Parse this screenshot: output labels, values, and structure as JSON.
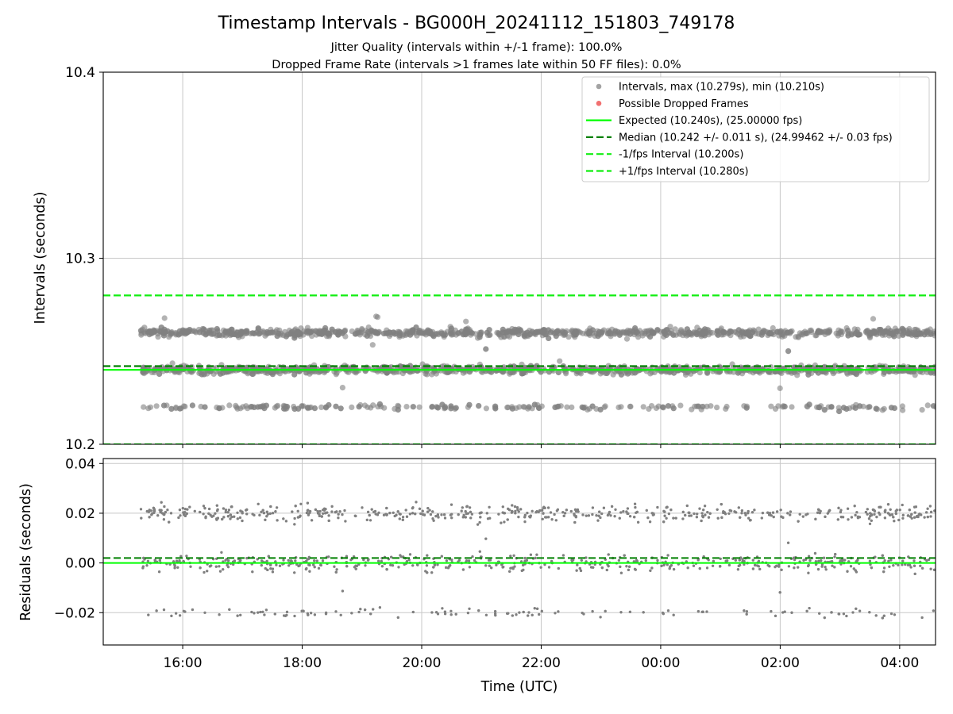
{
  "title": "Timestamp Intervals - BG000H_20241112_151803_749178",
  "subtitle_1": "Jitter Quality (intervals within +/-1 frame): 100.0%",
  "subtitle_2": "Dropped Frame Rate (intervals >1 frames late within 50 FF files): 0.0%",
  "colors": {
    "points": "#808080",
    "dropped": "#f06060",
    "expected": "#00ff00",
    "median": "#008000",
    "interval_lines": "#11ee11",
    "grid": "#c8c8c8"
  },
  "chart_data": [
    {
      "type": "scatter",
      "panel": "intervals",
      "ylabel": "Intervals (seconds)",
      "ylim": [
        10.2,
        10.4
      ],
      "yticks": [
        "10.2",
        "10.3",
        "10.4"
      ],
      "xlim_hours": [
        14.67,
        28.6
      ],
      "grid": true,
      "legend_position": "top-right",
      "legend": [
        {
          "label": "Intervals, max (10.279s), min (10.210s)",
          "style": "marker",
          "color": "#999999"
        },
        {
          "label": "Possible Dropped Frames",
          "style": "marker",
          "color": "#f06060"
        },
        {
          "label": "Expected (10.240s), (25.00000 fps)",
          "style": "solid",
          "color": "#00ff00"
        },
        {
          "label": "Median (10.242 +/- 0.011 s), (24.99462 +/- 0.03 fps)",
          "style": "dashed",
          "color": "#008000"
        },
        {
          "label": "-1/fps Interval (10.200s)",
          "style": "dashed",
          "color": "#11ee11"
        },
        {
          "label": "+1/fps Interval (10.280s)",
          "style": "dashed",
          "color": "#11ee11"
        }
      ],
      "reference_lines": {
        "expected": 10.24,
        "median": 10.242,
        "minus_1_fps": 10.2,
        "plus_1_fps": 10.28
      },
      "series": [
        {
          "name": "Intervals, max (10.279s), min (10.210s)",
          "x_range": [
            "15:18",
            "04:30"
          ],
          "clusters": [
            {
              "center": 10.26,
              "spread": 0.0018,
              "share": 0.44
            },
            {
              "center": 10.24,
              "spread": 0.0018,
              "share": 0.46
            },
            {
              "center": 10.22,
              "spread": 0.0012,
              "share": 0.1
            }
          ],
          "max": 10.279,
          "min": 10.21
        }
      ]
    },
    {
      "type": "scatter",
      "panel": "residuals",
      "ylabel": "Residuals (seconds)",
      "xlabel": "Time (UTC)",
      "ylim": [
        -0.033,
        0.042
      ],
      "yticks": [
        "−0.02",
        "0.00",
        "0.02",
        "0.04"
      ],
      "ytick_values": [
        -0.02,
        0,
        0.02,
        0.04
      ],
      "xticks": [
        "16:00",
        "18:00",
        "20:00",
        "22:00",
        "00:00",
        "02:00",
        "04:00"
      ],
      "xtick_hours": [
        16,
        18,
        20,
        22,
        24,
        26,
        28
      ],
      "xlim_hours": [
        14.67,
        28.6
      ],
      "grid": true,
      "reference_lines": {
        "expected": 0,
        "median": 0.002
      },
      "series": [
        {
          "x_range": [
            "15:18",
            "04:30"
          ],
          "clusters": [
            {
              "center": 0.02,
              "spread": 0.0028,
              "share": 0.44
            },
            {
              "center": 0.0,
              "spread": 0.0028,
              "share": 0.46
            },
            {
              "center": -0.02,
              "spread": 0.0016,
              "share": 0.1
            }
          ]
        }
      ]
    }
  ]
}
